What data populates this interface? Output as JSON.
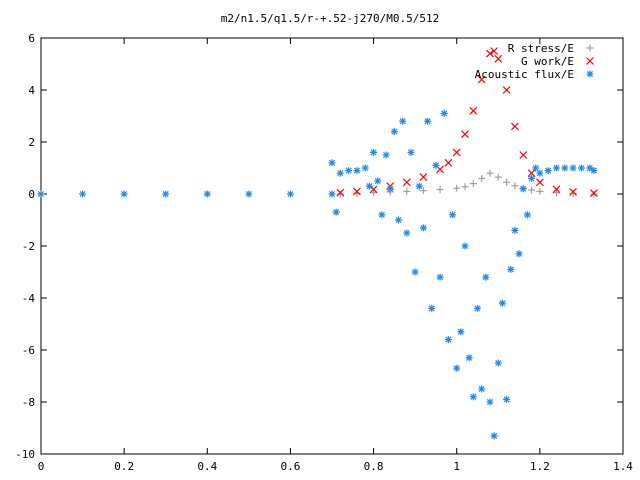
{
  "chart_data": {
    "type": "scatter",
    "title": "m2/n1.5/q1.5/r-+.52-j270/M0.5/512",
    "xlabel": "",
    "ylabel": "",
    "xlim": [
      0,
      1.4
    ],
    "ylim": [
      -10,
      6
    ],
    "x_ticks": [
      "0",
      "0.2",
      "0.4",
      "0.6",
      "0.8",
      "1",
      "1.2",
      "1.4"
    ],
    "y_ticks": [
      "6",
      "4",
      "2",
      "0",
      "-2",
      "-4",
      "-6",
      "-8",
      "-10"
    ],
    "grid": false,
    "legend_position": "top-right",
    "series": [
      {
        "name": "R stress/E",
        "marker": "+",
        "color": "#a0a0a0",
        "description_points": [
          [
            0.72,
            0.0
          ],
          [
            0.76,
            0.02
          ],
          [
            0.8,
            0.05
          ],
          [
            0.84,
            0.08
          ],
          [
            0.88,
            0.1
          ],
          [
            0.92,
            0.13
          ],
          [
            0.96,
            0.17
          ],
          [
            1.0,
            0.22
          ],
          [
            1.02,
            0.28
          ],
          [
            1.04,
            0.4
          ],
          [
            1.06,
            0.6
          ],
          [
            1.08,
            0.8
          ],
          [
            1.1,
            0.65
          ],
          [
            1.12,
            0.45
          ],
          [
            1.14,
            0.32
          ],
          [
            1.16,
            0.22
          ],
          [
            1.18,
            0.15
          ],
          [
            1.2,
            0.1
          ],
          [
            1.24,
            0.05
          ],
          [
            1.28,
            0.02
          ],
          [
            1.33,
            0.0
          ]
        ]
      },
      {
        "name": "G work/E",
        "marker": "x",
        "color": "#ff0000",
        "description_points": [
          [
            0.72,
            0.05
          ],
          [
            0.76,
            0.1
          ],
          [
            0.8,
            0.18
          ],
          [
            0.84,
            0.3
          ],
          [
            0.88,
            0.45
          ],
          [
            0.92,
            0.65
          ],
          [
            0.96,
            0.95
          ],
          [
            0.98,
            1.2
          ],
          [
            1.0,
            1.6
          ],
          [
            1.02,
            2.3
          ],
          [
            1.04,
            3.2
          ],
          [
            1.06,
            4.4
          ],
          [
            1.08,
            5.4
          ],
          [
            1.09,
            5.5
          ],
          [
            1.1,
            5.2
          ],
          [
            1.12,
            4.0
          ],
          [
            1.14,
            2.6
          ],
          [
            1.16,
            1.5
          ],
          [
            1.18,
            0.8
          ],
          [
            1.2,
            0.45
          ],
          [
            1.24,
            0.18
          ],
          [
            1.28,
            0.08
          ],
          [
            1.33,
            0.03
          ]
        ]
      },
      {
        "name": "Acoustic flux/E",
        "marker": "*",
        "color": "#1e8ae6",
        "description_points": [
          [
            0.0,
            0.0
          ],
          [
            0.1,
            0.0
          ],
          [
            0.2,
            0.0
          ],
          [
            0.3,
            0.0
          ],
          [
            0.4,
            0.0
          ],
          [
            0.5,
            0.0
          ],
          [
            0.6,
            0.0
          ],
          [
            0.7,
            0.0
          ],
          [
            0.7,
            1.2
          ],
          [
            0.71,
            -0.7
          ],
          [
            0.72,
            0.8
          ],
          [
            0.74,
            0.9
          ],
          [
            0.76,
            0.9
          ],
          [
            0.78,
            1.0
          ],
          [
            0.79,
            0.3
          ],
          [
            0.8,
            1.6
          ],
          [
            0.81,
            0.5
          ],
          [
            0.82,
            -0.8
          ],
          [
            0.83,
            1.5
          ],
          [
            0.84,
            0.2
          ],
          [
            0.85,
            2.4
          ],
          [
            0.86,
            -1.0
          ],
          [
            0.87,
            2.8
          ],
          [
            0.88,
            -1.5
          ],
          [
            0.89,
            1.6
          ],
          [
            0.9,
            -3.0
          ],
          [
            0.91,
            0.3
          ],
          [
            0.92,
            -1.3
          ],
          [
            0.93,
            2.8
          ],
          [
            0.94,
            -4.4
          ],
          [
            0.95,
            1.1
          ],
          [
            0.96,
            -3.2
          ],
          [
            0.97,
            3.1
          ],
          [
            0.98,
            -5.6
          ],
          [
            0.99,
            -0.8
          ],
          [
            1.0,
            -6.7
          ],
          [
            1.01,
            -5.3
          ],
          [
            1.02,
            -2.0
          ],
          [
            1.03,
            -6.3
          ],
          [
            1.04,
            -7.8
          ],
          [
            1.05,
            -4.4
          ],
          [
            1.06,
            -7.5
          ],
          [
            1.07,
            -3.2
          ],
          [
            1.08,
            -8.0
          ],
          [
            1.09,
            -9.3
          ],
          [
            1.1,
            -6.5
          ],
          [
            1.11,
            -4.2
          ],
          [
            1.12,
            -7.9
          ],
          [
            1.13,
            -2.9
          ],
          [
            1.14,
            -1.4
          ],
          [
            1.15,
            -2.3
          ],
          [
            1.16,
            0.2
          ],
          [
            1.17,
            -0.8
          ],
          [
            1.18,
            0.6
          ],
          [
            1.19,
            1.0
          ],
          [
            1.2,
            0.8
          ],
          [
            1.22,
            0.9
          ],
          [
            1.24,
            1.0
          ],
          [
            1.26,
            1.0
          ],
          [
            1.28,
            1.0
          ],
          [
            1.3,
            1.0
          ],
          [
            1.32,
            1.0
          ],
          [
            1.33,
            0.9
          ]
        ]
      }
    ]
  }
}
